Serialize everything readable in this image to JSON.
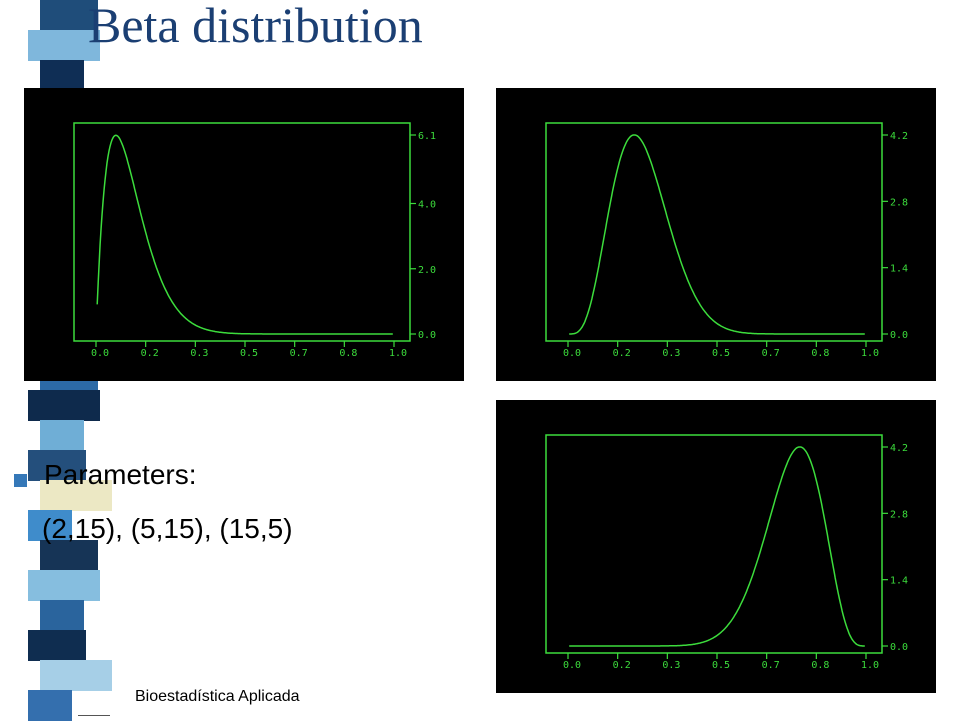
{
  "slide": {
    "title": "Beta distribution",
    "bullet_label": "Parameters:",
    "bullet_values": "(2,15), (5,15), (15,5)",
    "footer": "Bioestadística Aplicada"
  },
  "colors": {
    "title": "#1b3f73",
    "plot_line": "#3cdc3c",
    "plot_bg": "#000000",
    "bullet": "#3578b8",
    "strip": [
      "#1f4d7a",
      "#7fb7dc",
      "#0f2e55",
      "#3578b8",
      "#d7e1c8",
      "#2a5a8c",
      "#8fc3e0",
      "#1d3f66",
      "#e6e2b8",
      "#3b86c4",
      "#173a60",
      "#9ac8e4",
      "#2c6aa6",
      "#0e2a4c",
      "#6faed6",
      "#244f7c",
      "#ece8c4",
      "#3f8ccb",
      "#163456",
      "#86bedf",
      "#2a649d",
      "#0f2d50",
      "#a6cfe7",
      "#346fae"
    ]
  },
  "chart_data": [
    {
      "type": "line",
      "series": [
        {
          "alpha": 2,
          "beta": 15
        }
      ],
      "xlim": [
        0,
        1
      ],
      "x_tick_labels": [
        "0.0",
        "0.2",
        "0.3",
        "0.5",
        "0.7",
        "0.8",
        "1.0"
      ],
      "y_tick_labels": [
        "0.0",
        "2.0",
        "4.0",
        "6.1"
      ],
      "ylim": [
        0,
        6.1
      ]
    },
    {
      "type": "line",
      "series": [
        {
          "alpha": 5,
          "beta": 15
        }
      ],
      "xlim": [
        0,
        1
      ],
      "x_tick_labels": [
        "0.0",
        "0.2",
        "0.3",
        "0.5",
        "0.7",
        "0.8",
        "1.0"
      ],
      "y_tick_labels": [
        "0.0",
        "1.4",
        "2.8",
        "4.2"
      ],
      "ylim": [
        0,
        4.2
      ]
    },
    {
      "type": "line",
      "series": [
        {
          "alpha": 15,
          "beta": 5
        }
      ],
      "xlim": [
        0,
        1
      ],
      "x_tick_labels": [
        "0.0",
        "0.2",
        "0.3",
        "0.5",
        "0.7",
        "0.8",
        "1.0"
      ],
      "y_tick_labels": [
        "0.0",
        "1.4",
        "2.8",
        "4.2"
      ],
      "ylim": [
        0,
        4.2
      ]
    }
  ]
}
